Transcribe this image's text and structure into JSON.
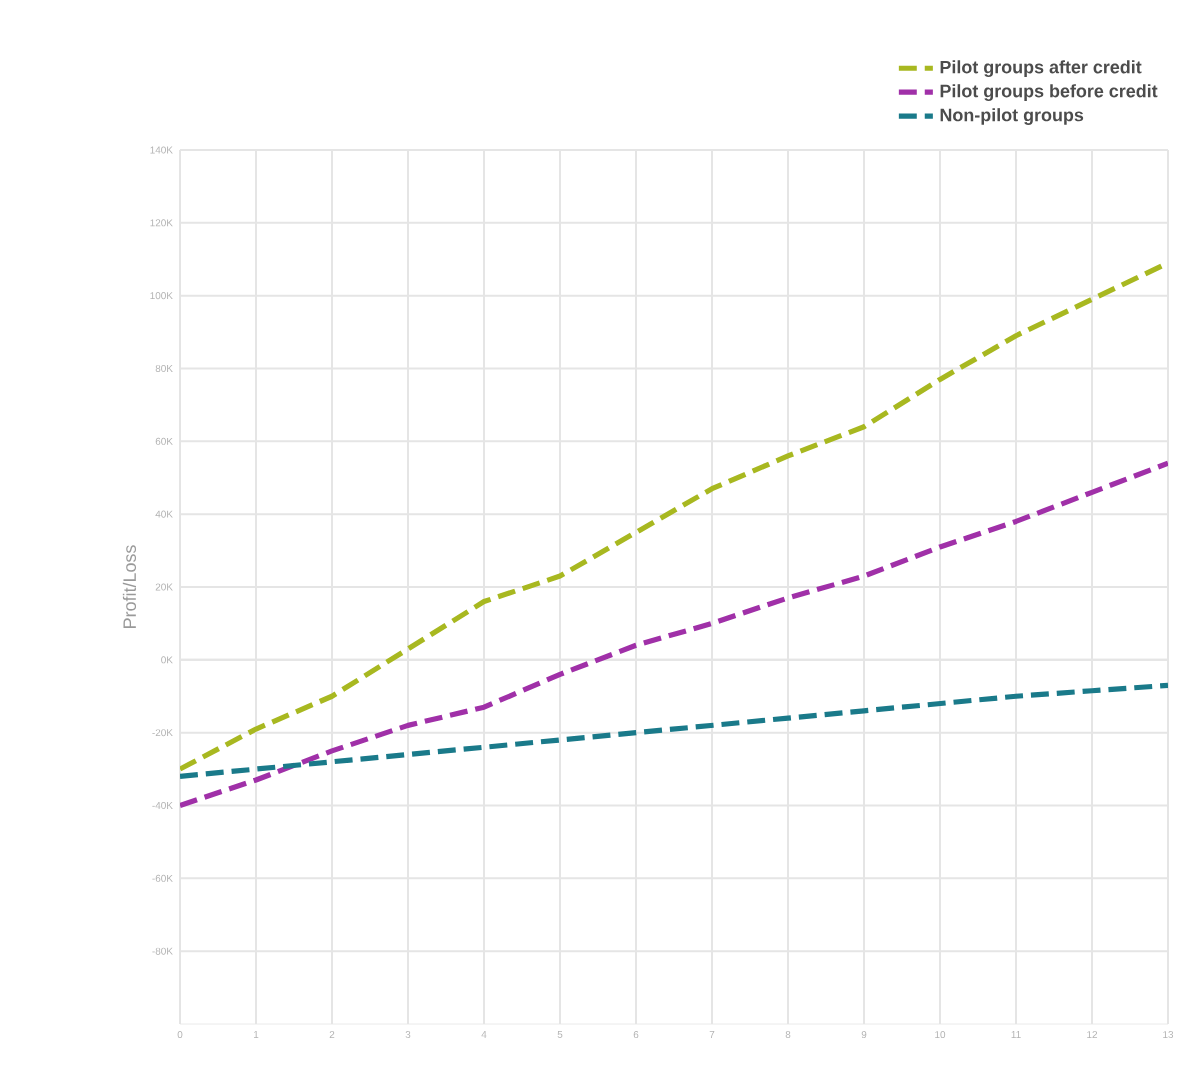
{
  "chart_data": {
    "type": "line",
    "ylabel": "Profit/Loss",
    "x": [
      0,
      1,
      2,
      3,
      4,
      5,
      6,
      7,
      8,
      9,
      10,
      11,
      12,
      13
    ],
    "xlim": [
      0,
      13
    ],
    "xticks": [
      0,
      1,
      2,
      3,
      4,
      5,
      6,
      7,
      8,
      9,
      10,
      11,
      12,
      13
    ],
    "ylim": [
      -100000,
      140000
    ],
    "yticks": [
      {
        "value": -80000,
        "label": "-80K"
      },
      {
        "value": -60000,
        "label": "-60K"
      },
      {
        "value": -40000,
        "label": "-40K"
      },
      {
        "value": -20000,
        "label": "-20K"
      },
      {
        "value": 0,
        "label": "0K"
      },
      {
        "value": 20000,
        "label": "20K"
      },
      {
        "value": 40000,
        "label": "40K"
      },
      {
        "value": 60000,
        "label": "60K"
      },
      {
        "value": 80000,
        "label": "80K"
      },
      {
        "value": 100000,
        "label": "100K"
      },
      {
        "value": 120000,
        "label": "120K"
      },
      {
        "value": 140000,
        "label": "140K"
      }
    ],
    "grid": true,
    "legend": "top right",
    "line_style": "dashed",
    "marker": "none",
    "series": [
      {
        "name": "Pilot groups after credit",
        "color": "#a8b820",
        "values": [
          -30000,
          -19000,
          -10000,
          3000,
          16000,
          23000,
          35000,
          47000,
          56000,
          64000,
          77000,
          89000,
          99000,
          109000
        ]
      },
      {
        "name": "Pilot groups before credit",
        "color": "#a030a8",
        "values": [
          -40000,
          -33000,
          -25000,
          -18000,
          -13000,
          -4000,
          4000,
          10000,
          17000,
          23000,
          31000,
          38000,
          46000,
          54000
        ]
      },
      {
        "name": "Non-pilot groups",
        "color": "#1a7a8a",
        "values": [
          -32000,
          -30000,
          -28000,
          -26000,
          -24000,
          -22000,
          -20000,
          -18000,
          -16000,
          -14000,
          -12000,
          -10000,
          -8500,
          -7000
        ]
      }
    ]
  }
}
